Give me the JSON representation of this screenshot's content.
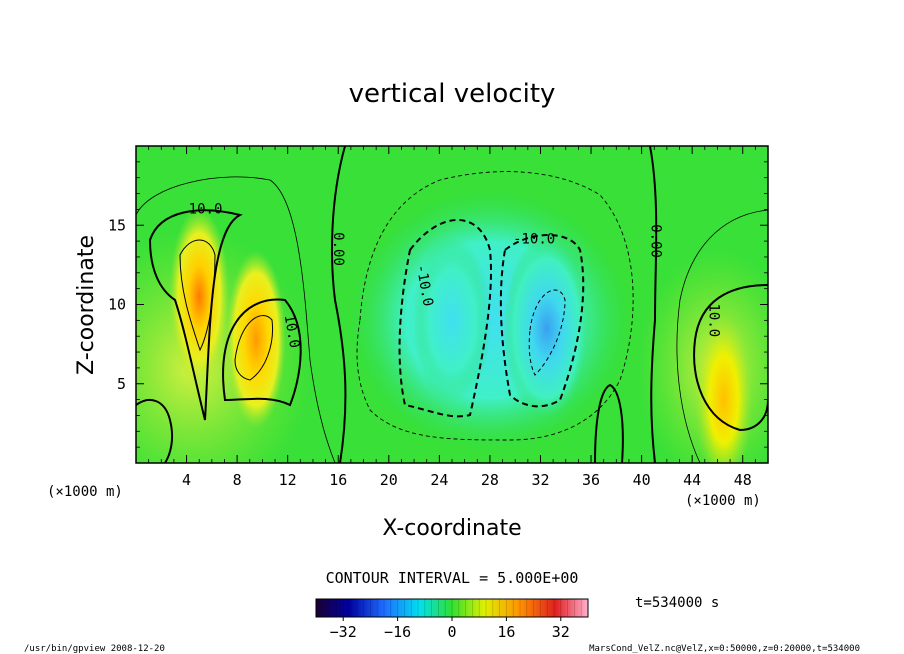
{
  "chart_data": {
    "type": "heatmap",
    "title": "vertical velocity",
    "xlabel": "X-coordinate",
    "ylabel": "Z-coordinate",
    "x_unit_label_left": "(×1000 m)",
    "x_unit_label_right": "(×1000 m)",
    "xlim": [
      0,
      50
    ],
    "ylim": [
      0,
      20
    ],
    "xticks": [
      4,
      8,
      12,
      16,
      20,
      24,
      28,
      32,
      36,
      40,
      44,
      48
    ],
    "yticks": [
      5,
      10,
      15
    ],
    "contour_interval_text": "CONTOUR INTERVAL = 5.000E+00",
    "time_text": "t=534000 s",
    "colorbar": {
      "range": [
        -40,
        40
      ],
      "ticks": [
        -32,
        -16,
        0,
        16,
        32
      ]
    },
    "contour_labels": [
      {
        "text": "10.0",
        "x": 5.5,
        "y": 16.0,
        "rotate": 0
      },
      {
        "text": "10.0",
        "x": 12.3,
        "y": 8.3,
        "rotate": 80
      },
      {
        "text": "0.00",
        "x": 16.0,
        "y": 13.5,
        "rotate": 90
      },
      {
        "text": "-10.0",
        "x": 22.8,
        "y": 11.2,
        "rotate": 80
      },
      {
        "text": "-10.0",
        "x": 31.5,
        "y": 14.1,
        "rotate": 0
      },
      {
        "text": "0.00",
        "x": 41.1,
        "y": 14.0,
        "rotate": 90
      },
      {
        "text": "10.0",
        "x": 45.7,
        "y": 9.0,
        "rotate": 90
      }
    ],
    "features": [
      {
        "kind": "updraft",
        "x": 5.0,
        "z": 10.5,
        "peak": 24
      },
      {
        "kind": "updraft",
        "x": 9.5,
        "z": 7.8,
        "peak": 21
      },
      {
        "kind": "updraft",
        "x": 46.5,
        "z": 4.0,
        "peak": 19
      },
      {
        "kind": "downdraft",
        "x": 32.5,
        "z": 8.5,
        "peak": -20
      },
      {
        "kind": "downdraft",
        "x": 25.0,
        "z": 9.0,
        "peak": -13
      }
    ]
  },
  "footer": {
    "left": "/usr/bin/gpview  2008-12-20",
    "right": "MarsCond_VelZ.nc@VelZ,x=0:50000,z=0:20000,t=534000"
  }
}
